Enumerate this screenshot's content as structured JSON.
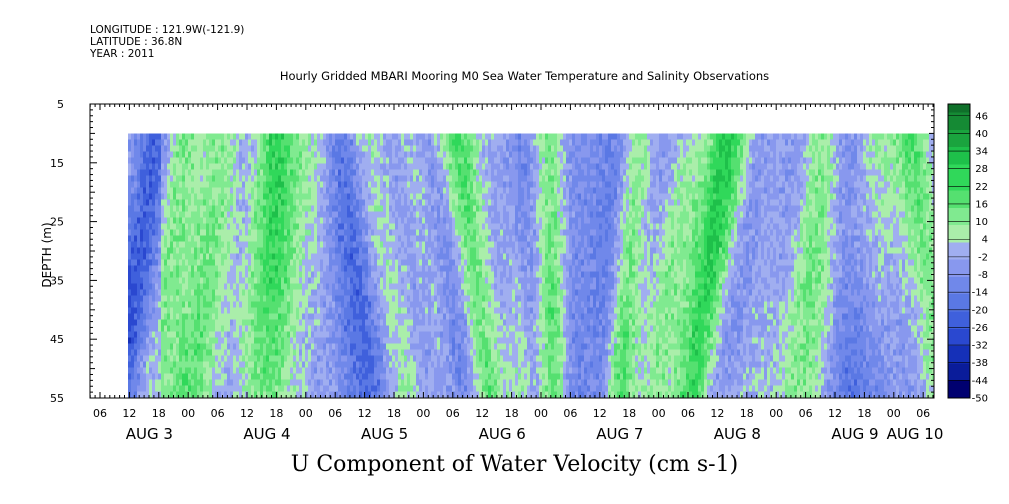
{
  "header": {
    "longitude": "LONGITUDE : 121.9W(-121.9)",
    "latitude": "LATITUDE : 36.8N",
    "year": "YEAR : 2011",
    "title": "Hourly Gridded MBARI Mooring M0 Sea Water Temperature and Salinity Observations"
  },
  "chart_data": {
    "type": "heatmap",
    "title": "Hourly Gridded MBARI Mooring M0 Sea Water Temperature and Salinity Observations",
    "subtitle": "U Component of Water Velocity (cm s-1)",
    "ylabel": "DEPTH (m)",
    "xlabel": "",
    "ylim": [
      55,
      5
    ],
    "y_ticks": [
      "5",
      "15",
      "25",
      "35",
      "45",
      "55"
    ],
    "x_hour_ticks": [
      "06",
      "12",
      "18",
      "00",
      "06",
      "12",
      "18",
      "00",
      "06",
      "12",
      "18",
      "00",
      "06",
      "12",
      "18",
      "00",
      "06",
      "12",
      "18",
      "00",
      "06",
      "12",
      "18",
      "00",
      "06",
      "12",
      "18",
      "00",
      "06",
      "12",
      "18",
      "00"
    ],
    "x_day_labels": [
      "AUG  3",
      "AUG  4",
      "AUG  5",
      "AUG  6",
      "AUG  7",
      "AUG  8",
      "AUG  9",
      "AUG 10"
    ],
    "data_depth_range": [
      10,
      55
    ],
    "colorbar": {
      "labels": [
        "46",
        "40",
        "34",
        "28",
        "22",
        "16",
        "10",
        "4",
        "-2",
        "-8",
        "-14",
        "-20",
        "-26",
        "-32",
        "-38",
        "-44",
        "-50"
      ],
      "range": [
        -50,
        50
      ]
    },
    "colors": {
      "strong_positive": "#1a7a1a",
      "positive": "#22dd44",
      "weak_positive": "#aaeeaa",
      "weak_negative": "#aab0ee",
      "negative": "#8890ee",
      "strong_negative": "#000070"
    }
  }
}
